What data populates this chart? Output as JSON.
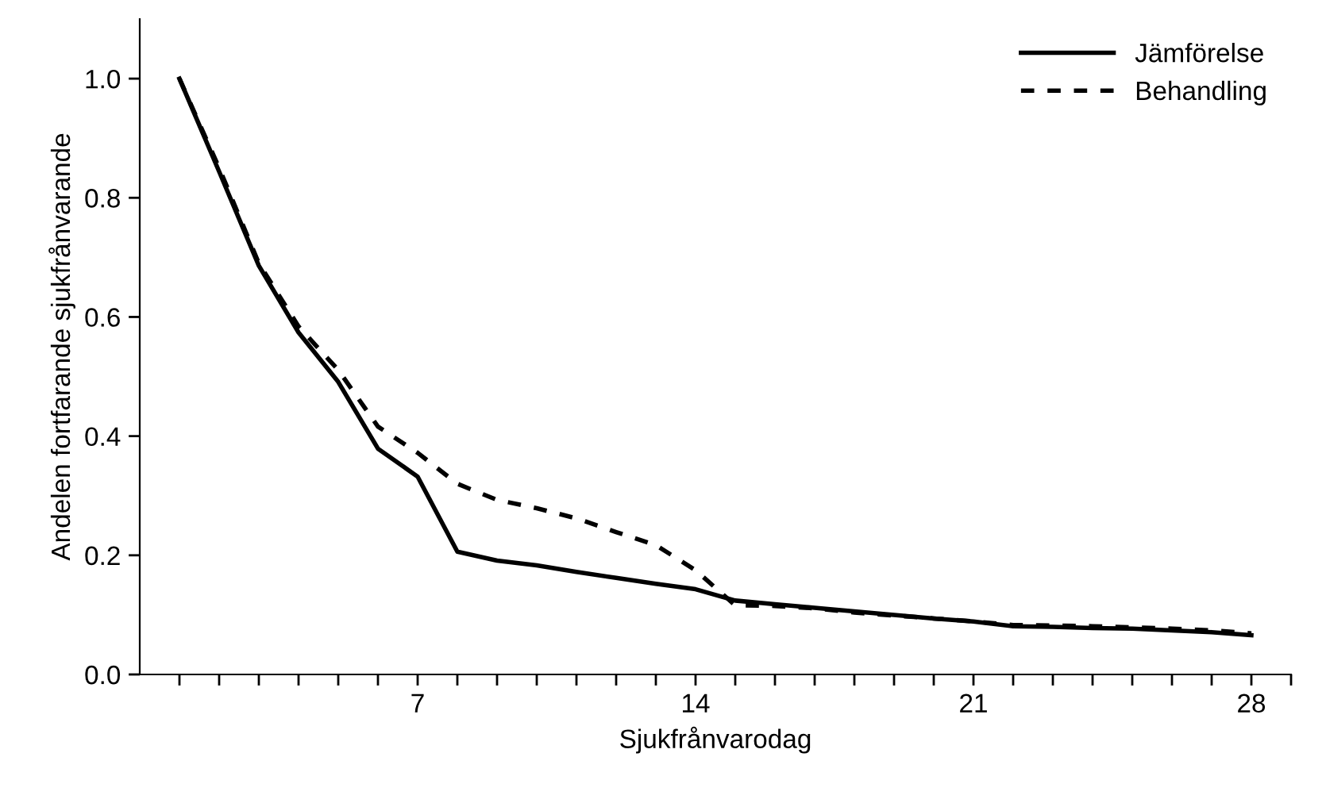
{
  "chart_data": {
    "type": "line",
    "xlabel": "Sjukfrånvarodag",
    "ylabel": "Andelen fortfarande sjukfrånvarande",
    "x": [
      1,
      2,
      3,
      4,
      5,
      6,
      7,
      8,
      9,
      10,
      11,
      12,
      13,
      14,
      15,
      16,
      17,
      18,
      19,
      20,
      21,
      22,
      23,
      24,
      25,
      26,
      27,
      28
    ],
    "series": [
      {
        "name": "Jämförelse",
        "color": "#000000",
        "line_style": "solid",
        "values": [
          1.0,
          0.844,
          0.686,
          0.574,
          0.491,
          0.379,
          0.332,
          0.206,
          0.191,
          0.183,
          0.172,
          0.162,
          0.152,
          0.143,
          0.124,
          0.118,
          0.112,
          0.106,
          0.1,
          0.094,
          0.089,
          0.081,
          0.08,
          0.078,
          0.077,
          0.074,
          0.071,
          0.066
        ]
      },
      {
        "name": "Behandling",
        "color": "#000000",
        "line_style": "dashed",
        "values": [
          1.0,
          0.85,
          0.69,
          0.584,
          0.511,
          0.416,
          0.372,
          0.32,
          0.293,
          0.279,
          0.262,
          0.239,
          0.217,
          0.175,
          0.116,
          0.115,
          0.111,
          0.104,
          0.099,
          0.094,
          0.089,
          0.083,
          0.082,
          0.081,
          0.079,
          0.077,
          0.074,
          0.069
        ]
      }
    ],
    "xlim": [
      0,
      29
    ],
    "xticks": [
      {
        "value": 1,
        "label": null
      },
      {
        "value": 2,
        "label": null
      },
      {
        "value": 3,
        "label": null
      },
      {
        "value": 4,
        "label": null
      },
      {
        "value": 5,
        "label": null
      },
      {
        "value": 6,
        "label": null
      },
      7,
      {
        "value": 8,
        "label": null
      },
      {
        "value": 9,
        "label": null
      },
      {
        "value": 10,
        "label": null
      },
      {
        "value": 11,
        "label": null
      },
      {
        "value": 12,
        "label": null
      },
      {
        "value": 13,
        "label": null
      },
      14,
      {
        "value": 15,
        "label": null
      },
      {
        "value": 16,
        "label": null
      },
      {
        "value": 17,
        "label": null
      },
      {
        "value": 18,
        "label": null
      },
      {
        "value": 19,
        "label": null
      },
      {
        "value": 20,
        "label": null
      },
      21,
      {
        "value": 22,
        "label": null
      },
      {
        "value": 23,
        "label": null
      },
      {
        "value": 24,
        "label": null
      },
      {
        "value": 25,
        "label": null
      },
      {
        "value": 26,
        "label": null
      },
      {
        "value": 27,
        "label": null
      },
      28,
      {
        "value": 29,
        "label": null
      }
    ],
    "ylim": [
      0,
      1.1
    ],
    "yticks": [
      {
        "value": 0,
        "label": "0.0"
      },
      {
        "value": 0.2,
        "label": "0.2"
      },
      {
        "value": 0.4,
        "label": "0.4"
      },
      {
        "value": 0.6,
        "label": "0.6"
      },
      {
        "value": 0.8,
        "label": "0.8"
      },
      {
        "value": 1.0,
        "label": "1.0"
      }
    ],
    "grid": false,
    "legend": "top right",
    "marker": "none"
  }
}
